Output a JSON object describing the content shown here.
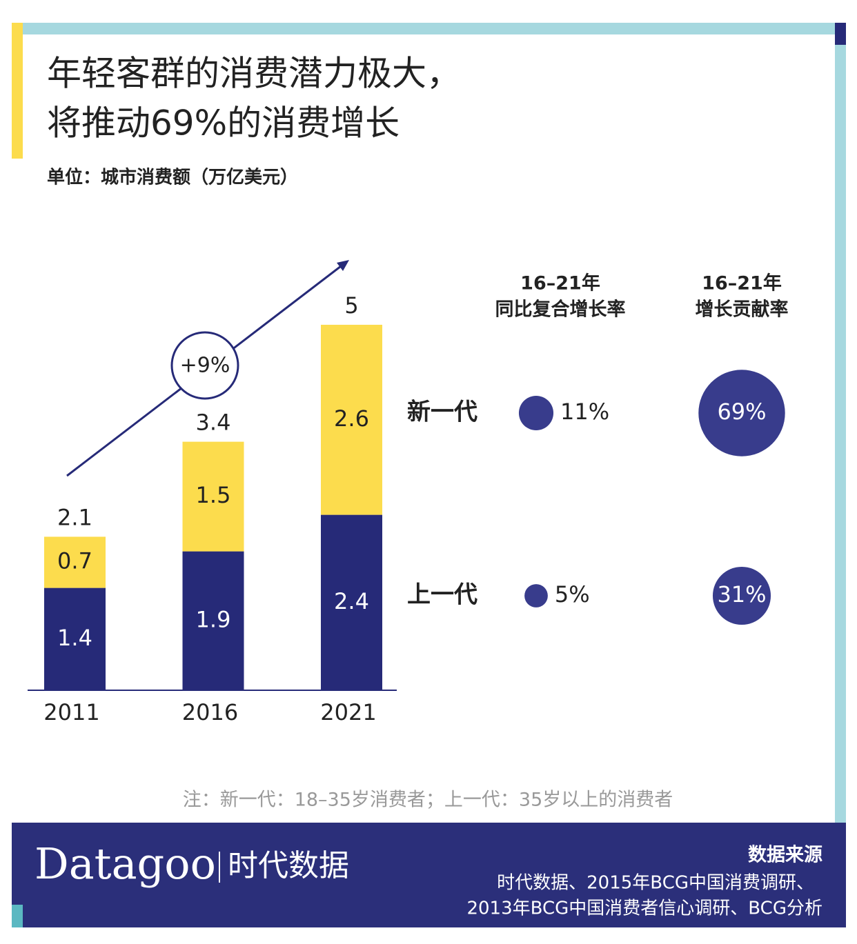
{
  "header": {
    "title_lines": [
      "年轻客群的消费潜力极大，",
      "将推动69%的消费增长"
    ],
    "unit": "单位：城市消费额（万亿美元）"
  },
  "chart_data": {
    "type": "bar",
    "stacked": true,
    "categories": [
      "2011",
      "2016",
      "2021"
    ],
    "series": [
      {
        "name": "上一代",
        "color": "#262a78",
        "values": [
          1.4,
          1.9,
          2.4
        ]
      },
      {
        "name": "新一代",
        "color": "#fcdc4d",
        "values": [
          0.7,
          1.5,
          2.6
        ]
      }
    ],
    "totals": [
      2.1,
      3.4,
      5
    ],
    "ylim": [
      0,
      5
    ],
    "annotation": "+9%"
  },
  "rates": {
    "color": "#383c8c",
    "headers": [
      [
        "16–21年",
        "同比复合增长率"
      ],
      [
        "16–21年",
        "增长贡献率"
      ]
    ],
    "cagr": {
      "values": [
        11,
        5
      ],
      "value_labels": [
        "11%",
        "5%"
      ]
    },
    "contribution": {
      "values": [
        69,
        31
      ],
      "value_labels": [
        "69%",
        "31%"
      ]
    }
  },
  "note": "注：新一代：18–35岁消费者；上一代：35岁以上的消费者",
  "footer": {
    "brand": "Datagoo",
    "brand_cn": "时代数据",
    "source_title": "数据来源",
    "source_lines": [
      "时代数据、2015年BCG中国消费调研、",
      "2013年BCG中国消费者信心调研、BCG分析"
    ]
  }
}
